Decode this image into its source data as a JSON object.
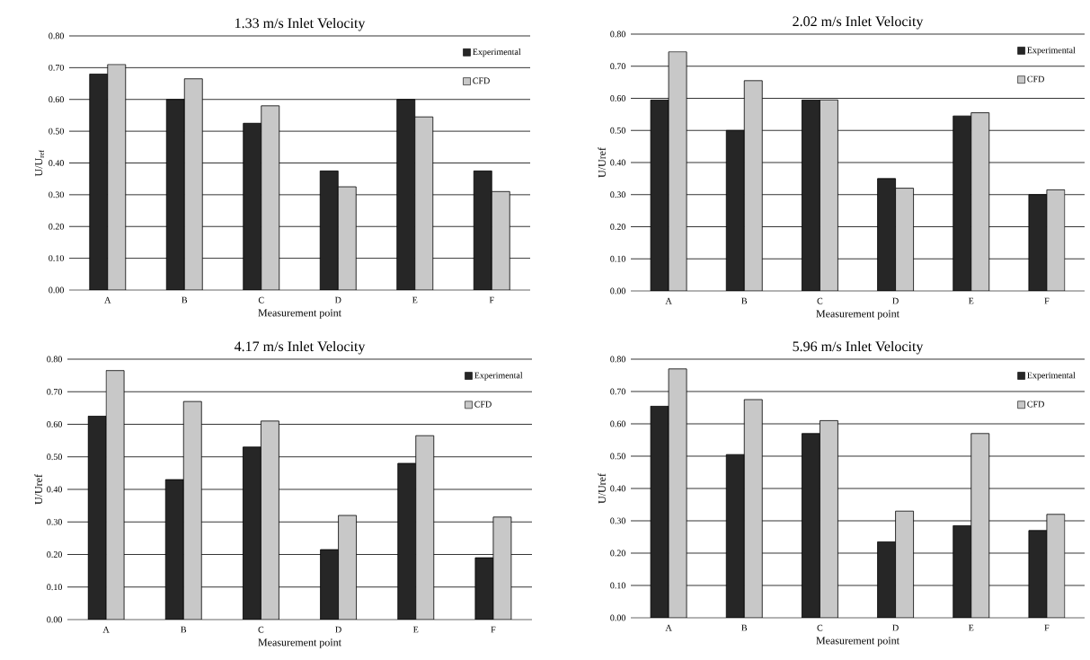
{
  "chart_data": [
    {
      "type": "bar",
      "title": "1.33 m/s Inlet Velocity",
      "xlabel": "Measurement point",
      "ylabel": "U/U$_{ref}$",
      "categories": [
        "A",
        "B",
        "C",
        "D",
        "E",
        "F"
      ],
      "ylim": [
        0,
        0.8
      ],
      "yticks": [
        {
          "value": 0,
          "label": "0.00"
        },
        {
          "value": 0.1,
          "label": "0.10"
        },
        {
          "value": 0.2,
          "label": "0.20"
        },
        {
          "value": 0.3,
          "label": "0.30"
        },
        {
          "value": 0.4,
          "label": "0.40"
        },
        {
          "value": 0.5,
          "label": "0.50"
        },
        {
          "value": 0.6,
          "label": "0.60"
        },
        {
          "value": 0.7,
          "label": "0.70"
        },
        {
          "value": 0.8,
          "label": "0.80"
        }
      ],
      "grid": "y",
      "legend": "top right",
      "series": [
        {
          "name": "Experimental",
          "color": "#262626",
          "values": [
            0.68,
            0.6,
            0.525,
            0.375,
            0.6,
            0.375
          ]
        },
        {
          "name": "CFD",
          "color": "#c8c8c8",
          "values": [
            0.71,
            0.665,
            0.58,
            0.325,
            0.545,
            0.31
          ]
        }
      ]
    },
    {
      "type": "bar",
      "title": "2.02 m/s Inlet Velocity",
      "xlabel": "Measurement point",
      "ylabel": "U/Uref",
      "categories": [
        "A",
        "B",
        "C",
        "D",
        "E",
        "F"
      ],
      "ylim": [
        0,
        0.8
      ],
      "yticks": [
        {
          "value": 0,
          "label": "0.00"
        },
        {
          "value": 0.1,
          "label": "0.10"
        },
        {
          "value": 0.2,
          "label": "0.20"
        },
        {
          "value": 0.3,
          "label": "0.30"
        },
        {
          "value": 0.4,
          "label": "0.40"
        },
        {
          "value": 0.5,
          "label": "0.50"
        },
        {
          "value": 0.6,
          "label": "0.60"
        },
        {
          "value": 0.7,
          "label": "0.70"
        },
        {
          "value": 0.8,
          "label": "0.80"
        }
      ],
      "grid": "y",
      "legend": "top right",
      "series": [
        {
          "name": "Experimental",
          "color": "#262626",
          "values": [
            0.595,
            0.5,
            0.595,
            0.35,
            0.545,
            0.3
          ]
        },
        {
          "name": "CFD",
          "color": "#c8c8c8",
          "values": [
            0.745,
            0.655,
            0.595,
            0.32,
            0.555,
            0.315
          ]
        }
      ]
    },
    {
      "type": "bar",
      "title": "4.17 m/s Inlet Velocity",
      "xlabel": "Measurement point",
      "ylabel": "U/Uref",
      "categories": [
        "A",
        "B",
        "C",
        "D",
        "E",
        "F"
      ],
      "ylim": [
        0,
        0.8
      ],
      "yticks": [
        {
          "value": 0,
          "label": "0.00"
        },
        {
          "value": 0.1,
          "label": "0.10"
        },
        {
          "value": 0.2,
          "label": "0.20"
        },
        {
          "value": 0.3,
          "label": "0.30"
        },
        {
          "value": 0.4,
          "label": "0.40"
        },
        {
          "value": 0.5,
          "label": "0.50"
        },
        {
          "value": 0.6,
          "label": "0.60"
        },
        {
          "value": 0.7,
          "label": "0.70"
        },
        {
          "value": 0.8,
          "label": "0.80"
        }
      ],
      "grid": "y",
      "legend": "top right",
      "series": [
        {
          "name": "Experimental",
          "color": "#262626",
          "values": [
            0.625,
            0.43,
            0.53,
            0.215,
            0.48,
            0.19
          ]
        },
        {
          "name": "CFD",
          "color": "#c8c8c8",
          "values": [
            0.765,
            0.67,
            0.61,
            0.32,
            0.565,
            0.315
          ]
        }
      ]
    },
    {
      "type": "bar",
      "title": "5.96 m/s Inlet Velocity",
      "xlabel": "Measurement point",
      "ylabel": "U/Uref",
      "categories": [
        "A",
        "B",
        "C",
        "D",
        "E",
        "F"
      ],
      "ylim": [
        0,
        0.8
      ],
      "yticks": [
        {
          "value": 0,
          "label": "0.00"
        },
        {
          "value": 0.1,
          "label": "0.10"
        },
        {
          "value": 0.2,
          "label": "0.20"
        },
        {
          "value": 0.3,
          "label": "0.30"
        },
        {
          "value": 0.4,
          "label": "0.40"
        },
        {
          "value": 0.5,
          "label": "0.50"
        },
        {
          "value": 0.6,
          "label": "0.60"
        },
        {
          "value": 0.7,
          "label": "0.70"
        },
        {
          "value": 0.8,
          "label": "0.80"
        }
      ],
      "grid": "y",
      "legend": "top right",
      "series": [
        {
          "name": "Experimental",
          "color": "#262626",
          "values": [
            0.655,
            0.505,
            0.57,
            0.235,
            0.285,
            0.27
          ]
        },
        {
          "name": "CFD",
          "color": "#c8c8c8",
          "values": [
            0.77,
            0.675,
            0.61,
            0.33,
            0.57,
            0.32
          ]
        }
      ]
    }
  ]
}
